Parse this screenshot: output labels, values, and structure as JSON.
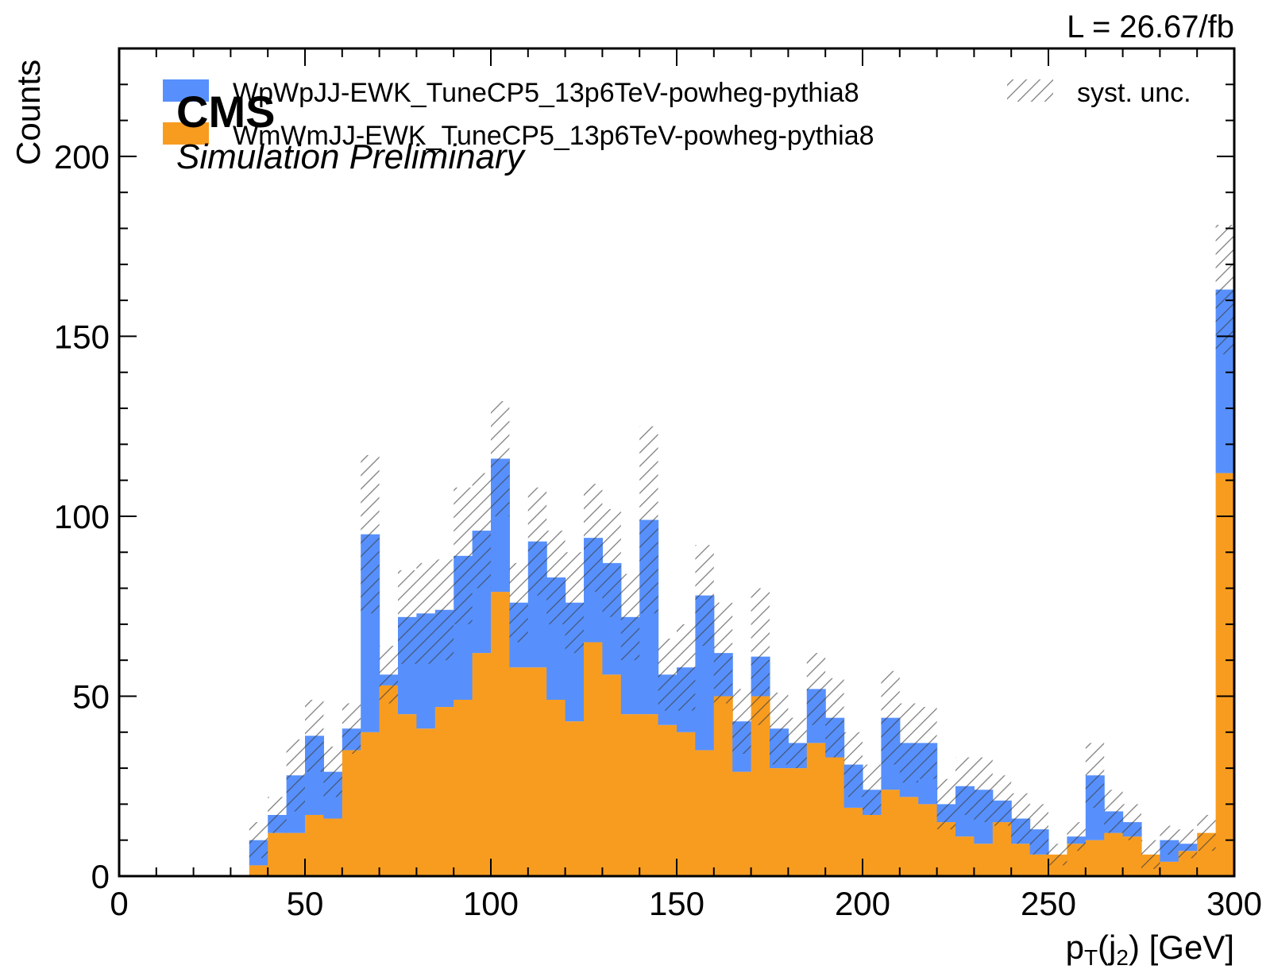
{
  "header": {
    "experiment": "CMS",
    "subtitle": "Simulation Preliminary",
    "lumi": "L = 26.67/fb"
  },
  "chart_data": {
    "type": "bar",
    "stacked": true,
    "histogram": true,
    "xlabel_main": "p",
    "xlabel_sub1": "T",
    "xlabel_mid": "(j",
    "xlabel_sub2": "2",
    "xlabel_end": ") [GeV]",
    "ylabel": "Counts",
    "xlim": [
      0,
      300
    ],
    "ylim": [
      0,
      230
    ],
    "xticks": [
      0,
      50,
      100,
      150,
      200,
      250,
      300
    ],
    "yticks": [
      0,
      50,
      100,
      150,
      200
    ],
    "bin_edges": [
      0,
      5,
      10,
      15,
      20,
      25,
      30,
      35,
      40,
      45,
      50,
      55,
      60,
      65,
      70,
      75,
      80,
      85,
      90,
      95,
      100,
      105,
      110,
      115,
      120,
      125,
      130,
      135,
      140,
      145,
      150,
      155,
      160,
      165,
      170,
      175,
      180,
      185,
      190,
      195,
      200,
      205,
      210,
      215,
      220,
      225,
      230,
      235,
      240,
      245,
      250,
      255,
      260,
      265,
      270,
      275,
      280,
      285,
      290,
      295,
      300
    ],
    "series": [
      {
        "name": "WmWmJJ-EWK_TuneCP5_13p6TeV-powheg-pythia8",
        "color": "#f89c20",
        "values": [
          0,
          0,
          0,
          0,
          0,
          0,
          0,
          3,
          12,
          12,
          17,
          16,
          35,
          40,
          53,
          45,
          41,
          47,
          49,
          62,
          79,
          58,
          58,
          49,
          43,
          65,
          56,
          45,
          45,
          42,
          40,
          35,
          50,
          29,
          50,
          30,
          30,
          37,
          33,
          19,
          17,
          24,
          22,
          20,
          15,
          11,
          9,
          15,
          9,
          6,
          6,
          9,
          10,
          12,
          11,
          6,
          4,
          7,
          12,
          112
        ]
      },
      {
        "name": "WpWpJJ-EWK_TuneCP5_13p6TeV-powheg-pythia8",
        "color": "#5790fc",
        "values": [
          0,
          0,
          0,
          0,
          0,
          0,
          0,
          7,
          5,
          16,
          22,
          13,
          6,
          55,
          3,
          27,
          32,
          27,
          40,
          34,
          37,
          18,
          35,
          34,
          33,
          29,
          31,
          27,
          54,
          14,
          18,
          43,
          12,
          14,
          11,
          11,
          7,
          15,
          11,
          12,
          7,
          20,
          15,
          17,
          5,
          14,
          15,
          6,
          7,
          7,
          0,
          2,
          18,
          6,
          4,
          0,
          6,
          2,
          0,
          51
        ]
      }
    ],
    "uncertainty": {
      "name": "syst. unc.",
      "color": "#9a9a9a",
      "halfwidth": [
        0,
        0,
        0,
        0,
        0,
        0,
        0,
        5,
        5,
        10,
        10,
        7,
        7,
        22,
        8,
        13,
        14,
        14,
        19,
        16,
        16,
        11,
        15,
        13,
        14,
        15,
        15,
        12,
        26,
        10,
        12,
        14,
        14,
        9,
        19,
        10,
        7,
        10,
        11,
        9,
        7,
        13,
        11,
        10,
        7,
        8,
        9,
        7,
        7,
        7,
        3,
        4,
        9,
        6,
        5,
        4,
        4,
        4,
        5,
        18
      ]
    },
    "legend_position": "top",
    "grid": false
  }
}
